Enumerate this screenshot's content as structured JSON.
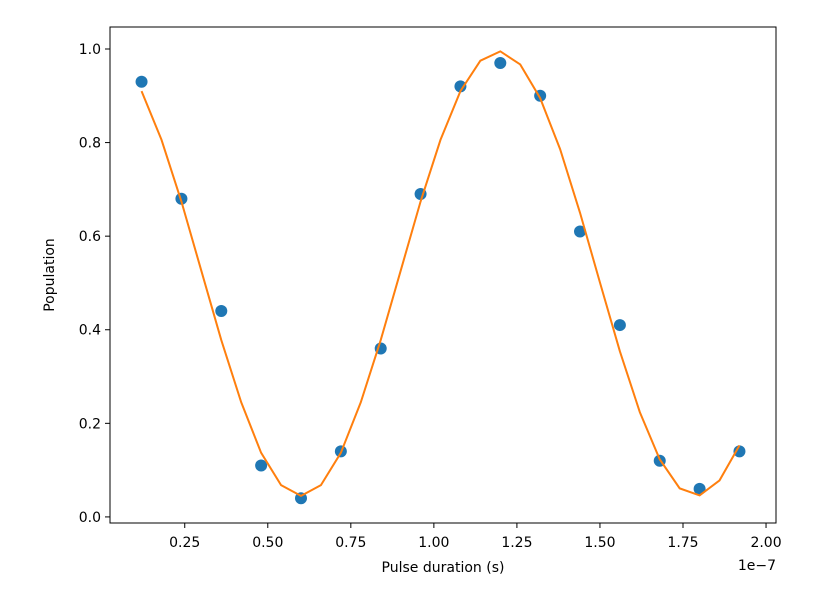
{
  "chart_data": {
    "type": "scatter",
    "xlabel": "Pulse duration (s)",
    "ylabel": "Population",
    "x_offset_label": "1e−7",
    "xlim": [
      0.025,
      2.03
    ],
    "ylim": [
      -0.013,
      1.047
    ],
    "xticks": [
      0.25,
      {
        "value": 0.5,
        "label": "0.50"
      },
      0.75,
      {
        "value": 1,
        "label": "1.00"
      },
      1.25,
      {
        "value": 1.5,
        "label": "1.50"
      },
      1.75,
      {
        "value": 2,
        "label": "2.00"
      }
    ],
    "yticks": [
      {
        "value": 0,
        "label": "0.0"
      },
      0.2,
      0.4,
      0.6,
      0.8,
      {
        "value": 1,
        "label": "1.0"
      }
    ],
    "series": [
      {
        "type": "scatter",
        "color": "#1f77b4",
        "x": [
          0.12,
          0.24,
          0.36,
          0.48,
          0.6,
          0.72,
          0.84,
          0.96,
          1.08,
          1.2,
          1.32,
          1.44,
          1.56,
          1.68,
          1.8,
          1.92
        ],
        "values": [
          0.93,
          0.68,
          0.44,
          0.11,
          0.04,
          0.14,
          0.36,
          0.69,
          0.92,
          0.97,
          0.9,
          0.61,
          0.41,
          0.12,
          0.06,
          0.14
        ]
      },
      {
        "type": "line",
        "color": "#ff7f0e",
        "x": [
          0.12,
          0.18,
          0.24,
          0.3,
          0.36,
          0.42,
          0.48,
          0.54,
          0.6,
          0.66,
          0.72,
          0.78,
          0.84,
          0.9,
          0.96,
          1.02,
          1.08,
          1.14,
          1.2,
          1.26,
          1.32,
          1.38,
          1.44,
          1.5,
          1.56,
          1.62,
          1.68,
          1.74,
          1.8,
          1.86,
          1.92
        ],
        "values": [
          0.91,
          0.806,
          0.674,
          0.526,
          0.378,
          0.245,
          0.137,
          0.068,
          0.045,
          0.068,
          0.137,
          0.245,
          0.378,
          0.526,
          0.674,
          0.806,
          0.91,
          0.975,
          0.995,
          0.967,
          0.895,
          0.786,
          0.65,
          0.501,
          0.354,
          0.224,
          0.123,
          0.061,
          0.046,
          0.078,
          0.153
        ]
      }
    ]
  }
}
